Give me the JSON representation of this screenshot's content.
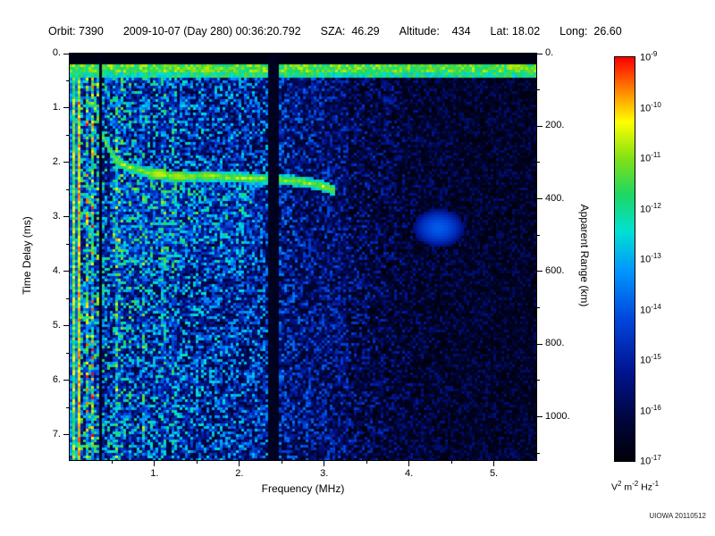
{
  "header": {
    "fields": [
      "Orbit: 7390",
      "2009-10-07 (Day 280) 00:36:20.792",
      "SZA:  46.29",
      "Altitude:    434",
      "Lat: 18.02",
      "Long:  26.60"
    ]
  },
  "credit": "UIOWA 20110512",
  "chart_data": {
    "type": "heatmap",
    "title": "",
    "xlabel": "Frequency (MHz)",
    "ylabel_left": "Time Delay (ms)",
    "ylabel_right": "Apparent Range (km)",
    "x_range_mhz": [
      0,
      5.5
    ],
    "y_range_ms": [
      0,
      7.46
    ],
    "x_major_ticks": [
      1,
      2,
      3,
      4,
      5
    ],
    "x_minor_step": 0.5,
    "y_major_ticks": [
      0,
      1,
      2,
      3,
      4,
      5,
      6,
      7
    ],
    "y_minor_step": 0.5,
    "right_axis_ticks_km": [
      0,
      200,
      400,
      600,
      800,
      1000
    ],
    "right_axis_minor_step_km": 100,
    "km_per_ms": 150,
    "colorbar": {
      "exponents": [
        -9,
        -10,
        -11,
        -12,
        -13,
        -14,
        -15,
        -16,
        -17
      ],
      "units_parts": [
        [
          "V",
          "2"
        ],
        [
          " m",
          "-2"
        ],
        [
          " Hz",
          "-1"
        ]
      ]
    },
    "colormap_stops": [
      [
        0.0,
        0,
        0,
        10
      ],
      [
        0.1,
        0,
        5,
        60
      ],
      [
        0.22,
        0,
        20,
        145
      ],
      [
        0.35,
        0,
        70,
        220
      ],
      [
        0.47,
        0,
        150,
        255
      ],
      [
        0.57,
        0,
        225,
        210
      ],
      [
        0.66,
        30,
        215,
        100
      ],
      [
        0.75,
        130,
        225,
        20
      ],
      [
        0.84,
        255,
        255,
        0
      ],
      [
        0.92,
        255,
        130,
        0
      ],
      [
        1.0,
        255,
        0,
        0
      ]
    ],
    "features": {
      "seed": 20110512,
      "top_black_band_ms": 0.18,
      "surface_band_ms": [
        0.18,
        0.45
      ],
      "black_columns_mhz": [
        {
          "f": 2.39,
          "w": 0.12
        },
        {
          "f": 0.37,
          "w": 0.035
        }
      ],
      "noise_profile": {
        "f": [
          0,
          0.15,
          0.7,
          1.5,
          2.3,
          2.6,
          3.3,
          4.0,
          4.6,
          5.5
        ],
        "level": [
          0.42,
          0.33,
          0.3,
          0.27,
          0.25,
          0.2,
          0.16,
          0.11,
          0.09,
          0.08
        ]
      },
      "streak_amp_max": 0.35,
      "streak_fade_mhz": 1.6,
      "diffuse_cloud": {
        "f": [
          0.5,
          2.2
        ],
        "ms": [
          2.2,
          3.9
        ],
        "boost": 0.07
      },
      "echo_trace": {
        "points_f_ms": [
          [
            0.3,
            1.0
          ],
          [
            0.34,
            1.25
          ],
          [
            0.4,
            1.55
          ],
          [
            0.48,
            1.8
          ],
          [
            0.58,
            2.0
          ],
          [
            0.72,
            2.1
          ],
          [
            0.9,
            2.18
          ],
          [
            1.1,
            2.24
          ],
          [
            1.35,
            2.27
          ],
          [
            1.6,
            2.24
          ],
          [
            1.95,
            2.28
          ],
          [
            2.3,
            2.3
          ],
          [
            2.6,
            2.33
          ],
          [
            2.85,
            2.38
          ],
          [
            3.0,
            2.44
          ],
          [
            3.12,
            2.52
          ]
        ],
        "half_width_ms": 0.1,
        "intensity": 0.78
      },
      "bright_blobs": [
        {
          "f": 1.05,
          "ms": 2.21,
          "i": 0.8
        },
        {
          "f": 1.28,
          "ms": 2.25,
          "i": 0.78
        },
        {
          "f": 1.62,
          "ms": 2.24,
          "i": 0.75
        }
      ],
      "faint_blob": {
        "f": 4.35,
        "ms": 3.2,
        "i": 0.38
      }
    }
  }
}
